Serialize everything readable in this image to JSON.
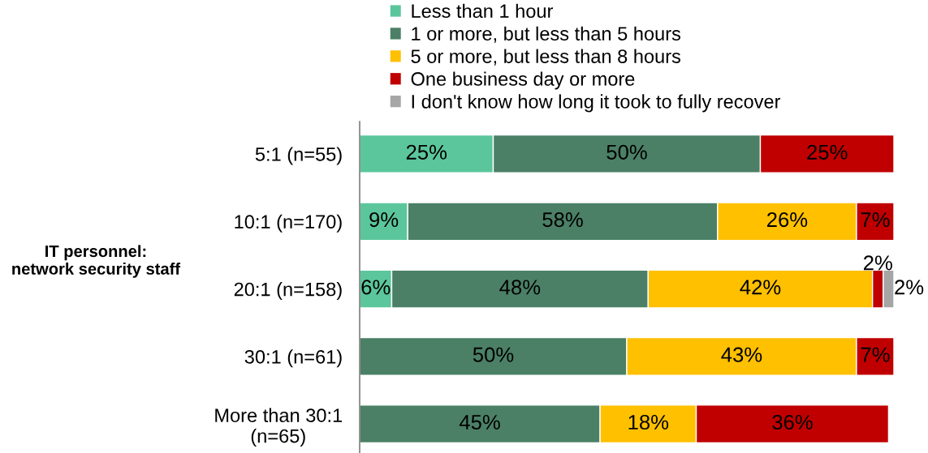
{
  "chart_data": {
    "type": "bar",
    "orientation": "horizontal",
    "stacked": true,
    "ylabel": "IT personnel:\nnetwork security staff",
    "categories": [
      "5:1 (n=55)",
      "10:1 (n=170)",
      "20:1 (n=158)",
      "30:1 (n=61)",
      "More than 30:1\n(n=65)"
    ],
    "xlim": [
      0,
      100
    ],
    "tick_labels": "y",
    "legend": "top",
    "series": [
      {
        "name": "Less than 1 hour",
        "color": "#5bc69c",
        "values": [
          25,
          9,
          6,
          null,
          null
        ],
        "value_labels": [
          "25%",
          "9%",
          "6%",
          null,
          null
        ]
      },
      {
        "name": "1 or more, but less than 5 hours",
        "color": "#4b8066",
        "values": [
          50,
          58,
          48,
          50,
          45
        ],
        "value_labels": [
          "50%",
          "58%",
          "48%",
          "50%",
          "45%"
        ]
      },
      {
        "name": "5 or more, but less than 8 hours",
        "color": "#ffc000",
        "values": [
          null,
          26,
          42,
          43,
          18
        ],
        "value_labels": [
          null,
          "26%",
          "42%",
          "43%",
          "18%"
        ]
      },
      {
        "name": "One business day or more",
        "color": "#c00000",
        "values": [
          25,
          7,
          2,
          7,
          36
        ],
        "value_labels": [
          "25%",
          "7%",
          "2%",
          "7%",
          "36%"
        ]
      },
      {
        "name": "I don't know how long it took to fully recover",
        "color": "#a6a6a6",
        "values": [
          null,
          null,
          2,
          null,
          null
        ],
        "value_labels": [
          null,
          null,
          "2%",
          null,
          null
        ]
      }
    ]
  }
}
